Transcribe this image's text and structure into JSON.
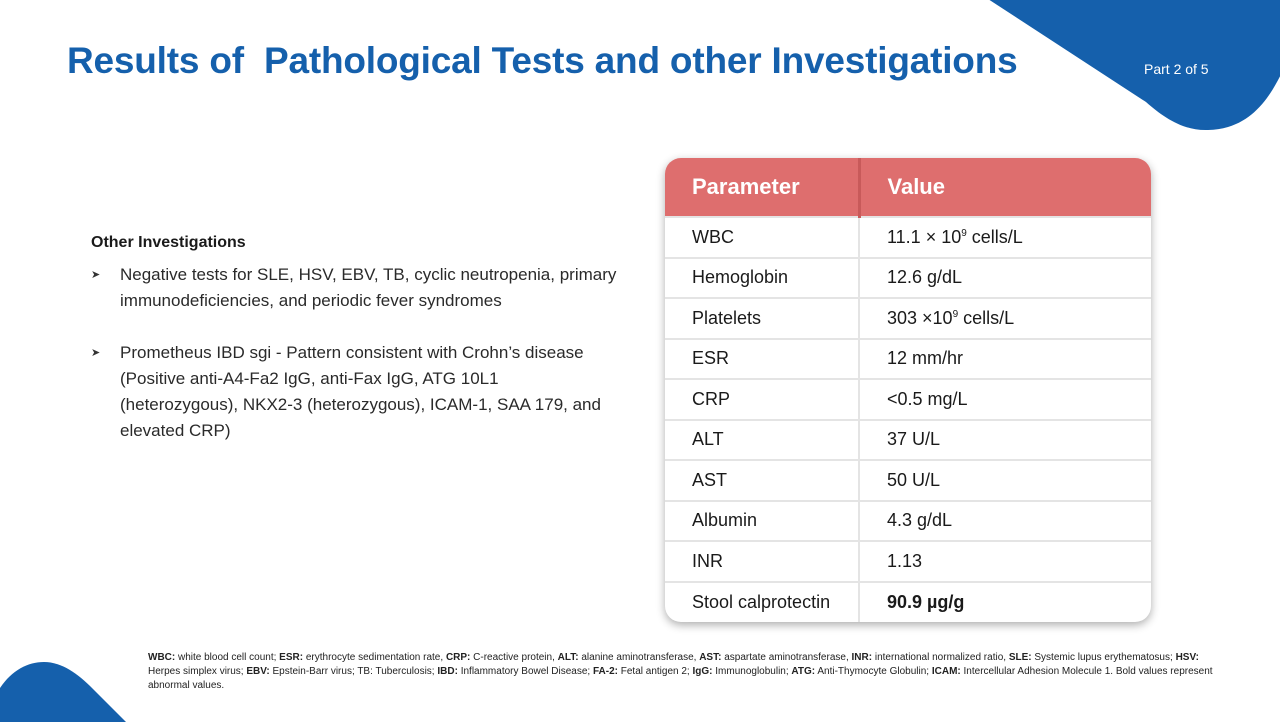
{
  "header": {
    "title": "Results of  Pathological Tests and other Investigations",
    "part_label": "Part 2 of 5"
  },
  "colors": {
    "brand_blue": "#1560AC",
    "table_header": "#DE6E6E"
  },
  "investigations": {
    "heading": "Other Investigations",
    "bullets": [
      "Negative tests for SLE, HSV, EBV, TB, cyclic neutropenia, primary immunodeficiencies, and periodic fever syndromes",
      "Prometheus IBD sgi - Pattern consistent with Crohn’s disease (Positive anti-A4-Fa2 IgG, anti-Fax IgG, ATG 10L1 (heterozygous), NKX2-3 (heterozygous), ICAM-1, SAA 179, and elevated CRP)"
    ]
  },
  "table": {
    "headers": [
      "Parameter",
      "Value"
    ],
    "rows": [
      {
        "parameter": "WBC",
        "value_main": "11.1 × 10",
        "value_sup": "9",
        "value_tail": " cells/L",
        "abnormal": false
      },
      {
        "parameter": "Hemoglobin",
        "value_main": "12.6 g/dL",
        "value_sup": "",
        "value_tail": "",
        "abnormal": false
      },
      {
        "parameter": "Platelets",
        "value_main": "303 ×10",
        "value_sup": "9",
        "value_tail": " cells/L",
        "abnormal": false
      },
      {
        "parameter": "ESR",
        "value_main": "12 mm/hr",
        "value_sup": "",
        "value_tail": "",
        "abnormal": false
      },
      {
        "parameter": "CRP",
        "value_main": "<0.5 mg/L",
        "value_sup": "",
        "value_tail": "",
        "abnormal": false
      },
      {
        "parameter": "ALT",
        "value_main": "37 U/L",
        "value_sup": "",
        "value_tail": "",
        "abnormal": false
      },
      {
        "parameter": "AST",
        "value_main": "50 U/L",
        "value_sup": "",
        "value_tail": "",
        "abnormal": false
      },
      {
        "parameter": "Albumin",
        "value_main": "4.3 g/dL",
        "value_sup": "",
        "value_tail": "",
        "abnormal": false
      },
      {
        "parameter": "INR",
        "value_main": "1.13",
        "value_sup": "",
        "value_tail": "",
        "abnormal": false
      },
      {
        "parameter": "Stool calprotectin",
        "value_main": "90.9 µg/g",
        "value_sup": "",
        "value_tail": "",
        "abnormal": true
      }
    ]
  },
  "footnote": {
    "abbreviations": [
      {
        "abbr": "WBC:",
        "def": " white blood cell count; "
      },
      {
        "abbr": "ESR:",
        "def": " erythrocyte sedimentation rate, "
      },
      {
        "abbr": "CRP:",
        "def": " C-reactive protein, "
      },
      {
        "abbr": "ALT:",
        "def": " alanine aminotransferase, "
      },
      {
        "abbr": "AST:",
        "def": " aspartate aminotransferase, "
      },
      {
        "abbr": "INR:",
        "def": " international normalized ratio, "
      },
      {
        "abbr": "SLE:",
        "def": " Systemic lupus erythematosus; "
      },
      {
        "abbr": "HSV:",
        "def": " Herpes simplex virus; "
      },
      {
        "abbr": "EBV:",
        "def": " Epstein-Barr virus; TB: Tuberculosis; "
      },
      {
        "abbr": "IBD:",
        "def": " Inflammatory Bowel Disease; "
      },
      {
        "abbr": "FA-2:",
        "def": " Fetal antigen 2; "
      },
      {
        "abbr": "IgG:",
        "def": " Immunoglobulin; "
      },
      {
        "abbr": "ATG:",
        "def": " Anti-Thymocyte Globulin; "
      },
      {
        "abbr": "ICAM:",
        "def": " Intercellular Adhesion Molecule 1. "
      }
    ],
    "closing": "Bold values represent abnormal values."
  }
}
